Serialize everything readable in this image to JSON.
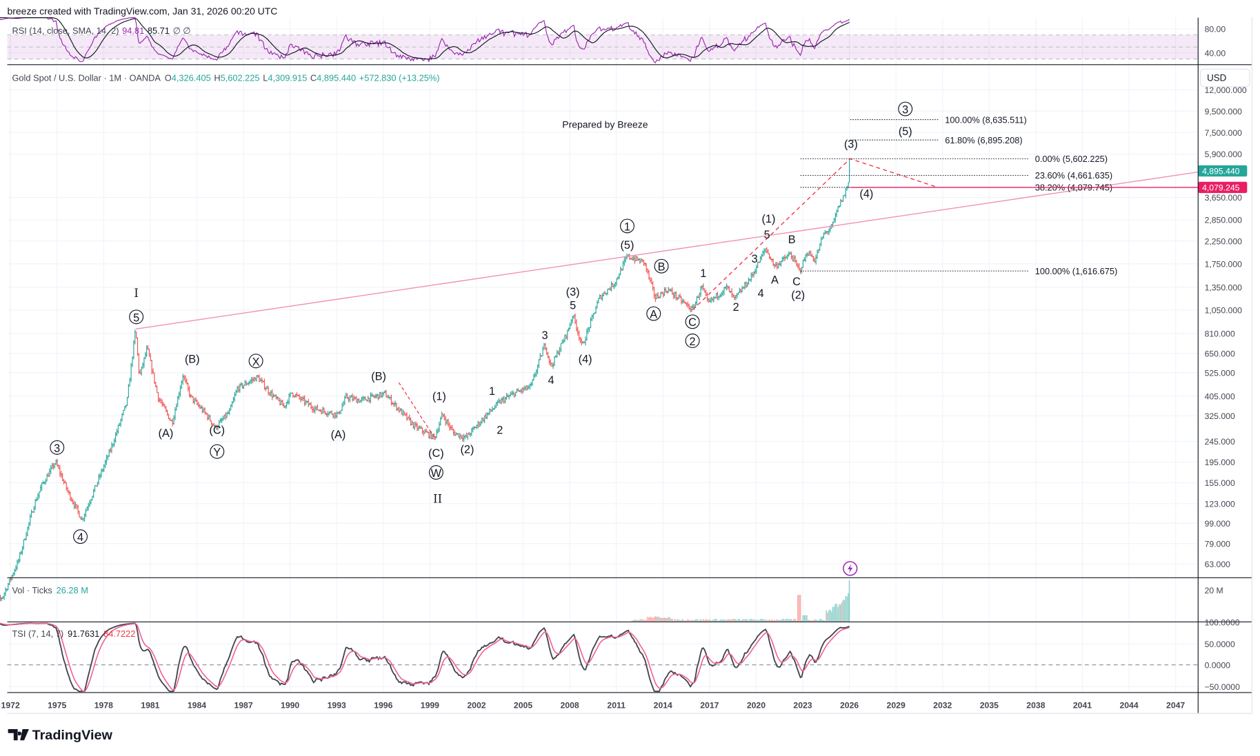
{
  "header": {
    "credit": "breeze created with TradingView.com, Jan 31, 2026 00:20 UTC"
  },
  "legend": {
    "symbol": "Gold Spot / U.S. Dollar · 1M · OANDA",
    "o_key": "O",
    "o": "4,326.405",
    "h_key": "H",
    "h": "5,602.225",
    "l_key": "L",
    "l": "4,309.915",
    "c_key": "C",
    "c": "4,895.440",
    "change": "+572.830 (+13.25%)"
  },
  "rsi": {
    "label": "RSI (14, close, SMA, 14, 2)",
    "value": "94.81",
    "sma": "85.71",
    "extra": "∅ ∅",
    "ticks": [
      "80.00",
      "40.00"
    ]
  },
  "volume": {
    "label": "Vol · Ticks",
    "value": "26.28 M",
    "tick": "20 M"
  },
  "tsi": {
    "label": "TSI (7, 14, 7)",
    "value": "91.7631",
    "signal": "84.7222",
    "ticks": [
      "100.0000",
      "50.0000",
      "0.0000",
      "−50.0000"
    ]
  },
  "currency_button": "USD",
  "note": "Prepared by Breeze",
  "last_price_label": "4,895.440",
  "line_price_label": "4,079.245",
  "brand": "TradingView",
  "colors": {
    "up": "#26a69a",
    "down": "#ef5350",
    "trendline": "#f48fb1",
    "fib_path": "#f23645",
    "hline": "#e91e63",
    "rsi": "#9c27b0",
    "tsi_signal": "#f06292"
  },
  "icons": {
    "alert": "lightning-icon",
    "logo": "tradingview-logo"
  },
  "chart_data": {
    "type": "ohlc",
    "scale": "log",
    "grid": true,
    "xlabel": "",
    "ylabel": "",
    "x_ticks": [
      "1972",
      "1975",
      "1978",
      "1981",
      "1984",
      "1987",
      "1990",
      "1993",
      "1996",
      "1999",
      "2002",
      "2005",
      "2008",
      "2011",
      "2014",
      "2017",
      "2020",
      "2023",
      "2026",
      "2029",
      "2032",
      "2035",
      "2038",
      "2041",
      "2044",
      "2047"
    ],
    "y_ticks": [
      {
        "v": 12000,
        "t": "12,000.000"
      },
      {
        "v": 9500,
        "t": "9,500.000"
      },
      {
        "v": 7500,
        "t": "7,500.000"
      },
      {
        "v": 5900,
        "t": "5,900.000"
      },
      {
        "v": 3650,
        "t": "3,650.000"
      },
      {
        "v": 2850,
        "t": "2,850.000"
      },
      {
        "v": 2250,
        "t": "2,250.000"
      },
      {
        "v": 1750,
        "t": "1,750.000"
      },
      {
        "v": 1350,
        "t": "1,350.000"
      },
      {
        "v": 1050,
        "t": "1,050.000"
      },
      {
        "v": 810,
        "t": "810.000"
      },
      {
        "v": 650,
        "t": "650.000"
      },
      {
        "v": 525,
        "t": "525.000"
      },
      {
        "v": 405,
        "t": "405.000"
      },
      {
        "v": 325,
        "t": "325.000"
      },
      {
        "v": 245,
        "t": "245.000"
      },
      {
        "v": 195,
        "t": "195.000"
      },
      {
        "v": 155,
        "t": "155.000"
      },
      {
        "v": 123,
        "t": "123.000"
      },
      {
        "v": 99,
        "t": "99.000"
      },
      {
        "v": 79,
        "t": "79.000"
      },
      {
        "v": 63,
        "t": "63.000"
      }
    ],
    "price_pivots": [
      [
        1970.6,
        38
      ],
      [
        1971.5,
        44
      ],
      [
        1972.5,
        65
      ],
      [
        1973.5,
        120
      ],
      [
        1974.0,
        150
      ],
      [
        1974.9,
        195
      ],
      [
        1975.7,
        140
      ],
      [
        1976.6,
        103
      ],
      [
        1977.5,
        150
      ],
      [
        1978.5,
        230
      ],
      [
        1979.5,
        380
      ],
      [
        1980.05,
        850
      ],
      [
        1980.3,
        500
      ],
      [
        1980.8,
        690
      ],
      [
        1981.5,
        400
      ],
      [
        1982.4,
        300
      ],
      [
        1983.1,
        510
      ],
      [
        1983.6,
        400
      ],
      [
        1984.6,
        330
      ],
      [
        1985.2,
        285
      ],
      [
        1986.1,
        340
      ],
      [
        1986.6,
        440
      ],
      [
        1987.9,
        500
      ],
      [
        1988.7,
        420
      ],
      [
        1989.6,
        360
      ],
      [
        1990.1,
        420
      ],
      [
        1991.5,
        355
      ],
      [
        1992.3,
        340
      ],
      [
        1993.1,
        330
      ],
      [
        1993.6,
        400
      ],
      [
        1994.5,
        385
      ],
      [
        1996.1,
        415
      ],
      [
        1997.3,
        330
      ],
      [
        1998.0,
        290
      ],
      [
        1999.3,
        255
      ],
      [
        1999.8,
        330
      ],
      [
        2000.5,
        270
      ],
      [
        2001.3,
        255
      ],
      [
        2002.5,
        320
      ],
      [
        2003.5,
        380
      ],
      [
        2004.5,
        420
      ],
      [
        2005.5,
        450
      ],
      [
        2006.4,
        720
      ],
      [
        2006.8,
        560
      ],
      [
        2007.9,
        840
      ],
      [
        2008.2,
        1000
      ],
      [
        2008.8,
        700
      ],
      [
        2009.9,
        1200
      ],
      [
        2010.9,
        1420
      ],
      [
        2011.7,
        1900
      ],
      [
        2012.8,
        1780
      ],
      [
        2013.5,
        1200
      ],
      [
        2014.3,
        1320
      ],
      [
        2015.9,
        1050
      ],
      [
        2016.5,
        1360
      ],
      [
        2016.9,
        1130
      ],
      [
        2018.1,
        1350
      ],
      [
        2018.6,
        1180
      ],
      [
        2019.7,
        1520
      ],
      [
        2020.6,
        2070
      ],
      [
        2021.2,
        1700
      ],
      [
        2022.2,
        1950
      ],
      [
        2022.8,
        1620
      ],
      [
        2023.3,
        2000
      ],
      [
        2023.8,
        1820
      ],
      [
        2024.3,
        2400
      ],
      [
        2024.9,
        2650
      ],
      [
        2025.3,
        3300
      ],
      [
        2025.7,
        3800
      ],
      [
        2025.95,
        4326.405
      ]
    ],
    "last_bar": {
      "o": 4326.405,
      "h": 5602.225,
      "l": 4309.915,
      "c": 4895.44
    },
    "fib_retracement": [
      {
        "label": "0.00% (5,602.225)",
        "v": 5602.225
      },
      {
        "label": "23.60% (4,661.635)",
        "v": 4661.635
      },
      {
        "label": "38.20% (4,079.745)",
        "v": 4079.745
      },
      {
        "label": "100.00% (1,616.675)",
        "v": 1616.675
      }
    ],
    "fib_extension": [
      {
        "label": "100.00% (8,635.511)",
        "v": 8635.511
      },
      {
        "label": "61.80% (6,895.208)",
        "v": 6895.208
      }
    ],
    "trendline": [
      [
        1980.05,
        850
      ],
      [
        2048.5,
        4842
      ]
    ],
    "projection_path": [
      [
        2015.9,
        1050
      ],
      [
        2026.05,
        5602.225
      ],
      [
        2031.7,
        4079.745
      ]
    ],
    "correction_path": [
      [
        1997.0,
        470
      ],
      [
        1999.3,
        255
      ]
    ],
    "hline": 4079.245,
    "annotations": [
      {
        "t": "I",
        "x": 1980.1,
        "p": 1265,
        "big": true
      },
      {
        "t": "5",
        "x": 1980.1,
        "p": 968,
        "c": true
      },
      {
        "t": "3",
        "x": 1975.0,
        "p": 228,
        "c": true
      },
      {
        "t": "4",
        "x": 1976.5,
        "p": 85,
        "c": true
      },
      {
        "t": "(A)",
        "x": 1982.0,
        "p": 269
      },
      {
        "t": "(B)",
        "x": 1983.7,
        "p": 611
      },
      {
        "t": "(C)",
        "x": 1985.3,
        "p": 279
      },
      {
        "t": "Y",
        "x": 1985.3,
        "p": 218,
        "c": true
      },
      {
        "t": "X",
        "x": 1987.8,
        "p": 594,
        "c": true
      },
      {
        "t": "(A)",
        "x": 1993.1,
        "p": 265
      },
      {
        "t": "(B)",
        "x": 1995.7,
        "p": 506
      },
      {
        "t": "(1)",
        "x": 1999.6,
        "p": 405
      },
      {
        "t": "(C)",
        "x": 1999.4,
        "p": 216
      },
      {
        "t": "W",
        "x": 1999.4,
        "p": 173,
        "c": true
      },
      {
        "t": "II",
        "x": 1999.5,
        "p": 130,
        "big": true
      },
      {
        "t": "(2)",
        "x": 2001.4,
        "p": 225
      },
      {
        "t": "1",
        "x": 2003.0,
        "p": 428
      },
      {
        "t": "2",
        "x": 2003.5,
        "p": 279
      },
      {
        "t": "3",
        "x": 2006.4,
        "p": 796
      },
      {
        "t": "4",
        "x": 2006.8,
        "p": 484
      },
      {
        "t": "(3)",
        "x": 2008.2,
        "p": 1288
      },
      {
        "t": "5",
        "x": 2008.2,
        "p": 1107
      },
      {
        "t": "(4)",
        "x": 2009.0,
        "p": 611
      },
      {
        "t": "1",
        "x": 2011.7,
        "p": 2648,
        "c": true
      },
      {
        "t": "(5)",
        "x": 2011.7,
        "p": 2158
      },
      {
        "t": "B",
        "x": 2013.9,
        "p": 1698,
        "c": true
      },
      {
        "t": "A",
        "x": 2013.4,
        "p": 1004,
        "c": true
      },
      {
        "t": "C",
        "x": 2015.9,
        "p": 918,
        "c": true
      },
      {
        "t": "2",
        "x": 2015.9,
        "p": 743,
        "c": true
      },
      {
        "t": "1",
        "x": 2016.6,
        "p": 1581
      },
      {
        "t": "2",
        "x": 2018.7,
        "p": 1089
      },
      {
        "t": "3",
        "x": 2019.9,
        "p": 1854
      },
      {
        "t": "4",
        "x": 2020.3,
        "p": 1265
      },
      {
        "t": "(1)",
        "x": 2020.8,
        "p": 2891
      },
      {
        "t": "5",
        "x": 2020.7,
        "p": 2421
      },
      {
        "t": "A",
        "x": 2021.2,
        "p": 1472
      },
      {
        "t": "B",
        "x": 2022.3,
        "p": 2296
      },
      {
        "t": "C",
        "x": 2022.6,
        "p": 1445
      },
      {
        "t": "(2)",
        "x": 2022.7,
        "p": 1241
      },
      {
        "t": "(3)",
        "x": 2026.1,
        "p": 6607
      },
      {
        "t": "(4)",
        "x": 2027.1,
        "p": 3811
      },
      {
        "t": "(5)",
        "x": 2029.6,
        "p": 7621
      },
      {
        "t": "3",
        "x": 2029.6,
        "p": 9681,
        "c": true
      }
    ]
  }
}
